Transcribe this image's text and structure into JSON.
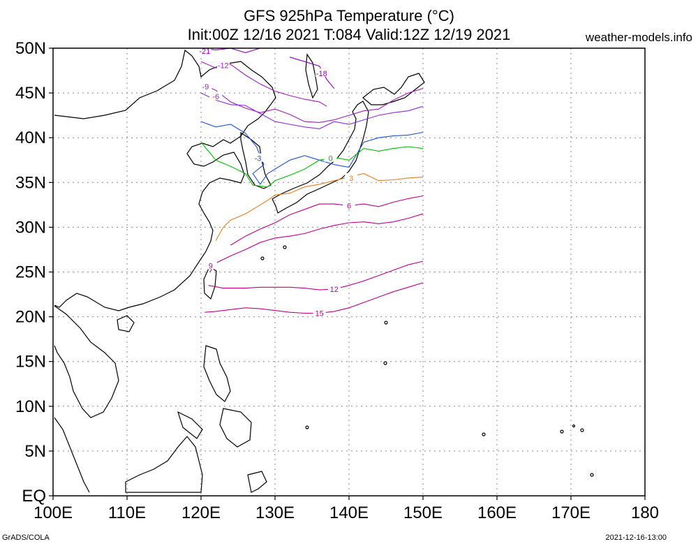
{
  "header": {
    "title_line1": "GFS 925hPa Temperature (°C)",
    "title_line2": "Init:00Z 12/16 2021 T:084 Valid:12Z 12/19 2021",
    "site": "weather-models.info"
  },
  "footer": {
    "left": "GrADS/COLA",
    "right": "2021-12-16-13:00"
  },
  "axes": {
    "lat_labels": [
      "50N",
      "45N",
      "40N",
      "35N",
      "30N",
      "25N",
      "20N",
      "15N",
      "10N",
      "5N",
      "EQ"
    ],
    "lon_labels": [
      "100E",
      "110E",
      "120E",
      "130E",
      "140E",
      "150E",
      "160E",
      "170E",
      "180"
    ]
  },
  "colors": {
    "minus21": "#8b00c8",
    "minus18": "#8b00c8",
    "minus12": "#9b1fb8",
    "minus9": "#9b1fb8",
    "minus6": "#8a2be2",
    "minus3": "#2050e0",
    "zero": "#00c000",
    "plus3": "#e08020",
    "plus6": "#c0008a",
    "plus9": "#c0008a",
    "plus12": "#c0008a",
    "plus15": "#c0008a"
  },
  "chart_data": {
    "type": "contour-map",
    "title": "GFS 925hPa Temperature (°C)",
    "variable": "925hPa Temperature",
    "units": "°C",
    "lon_range": [
      100,
      180
    ],
    "lat_range": [
      0,
      50
    ],
    "data_domain": {
      "lon": [
        120,
        150
      ],
      "lat": [
        20,
        50
      ]
    },
    "contour_interval": 3,
    "contours": [
      {
        "value": -21,
        "label": "-21"
      },
      {
        "value": -18,
        "label": "-18"
      },
      {
        "value": -12,
        "label": "-12"
      },
      {
        "value": -9,
        "label": "-9"
      },
      {
        "value": -6,
        "label": "-6"
      },
      {
        "value": -3,
        "label": "-3"
      },
      {
        "value": 0,
        "label": "0"
      },
      {
        "value": 3,
        "label": "3"
      },
      {
        "value": 6,
        "label": "6"
      },
      {
        "value": 9,
        "label": "9"
      },
      {
        "value": 12,
        "label": "12"
      },
      {
        "value": 15,
        "label": "15"
      }
    ]
  }
}
